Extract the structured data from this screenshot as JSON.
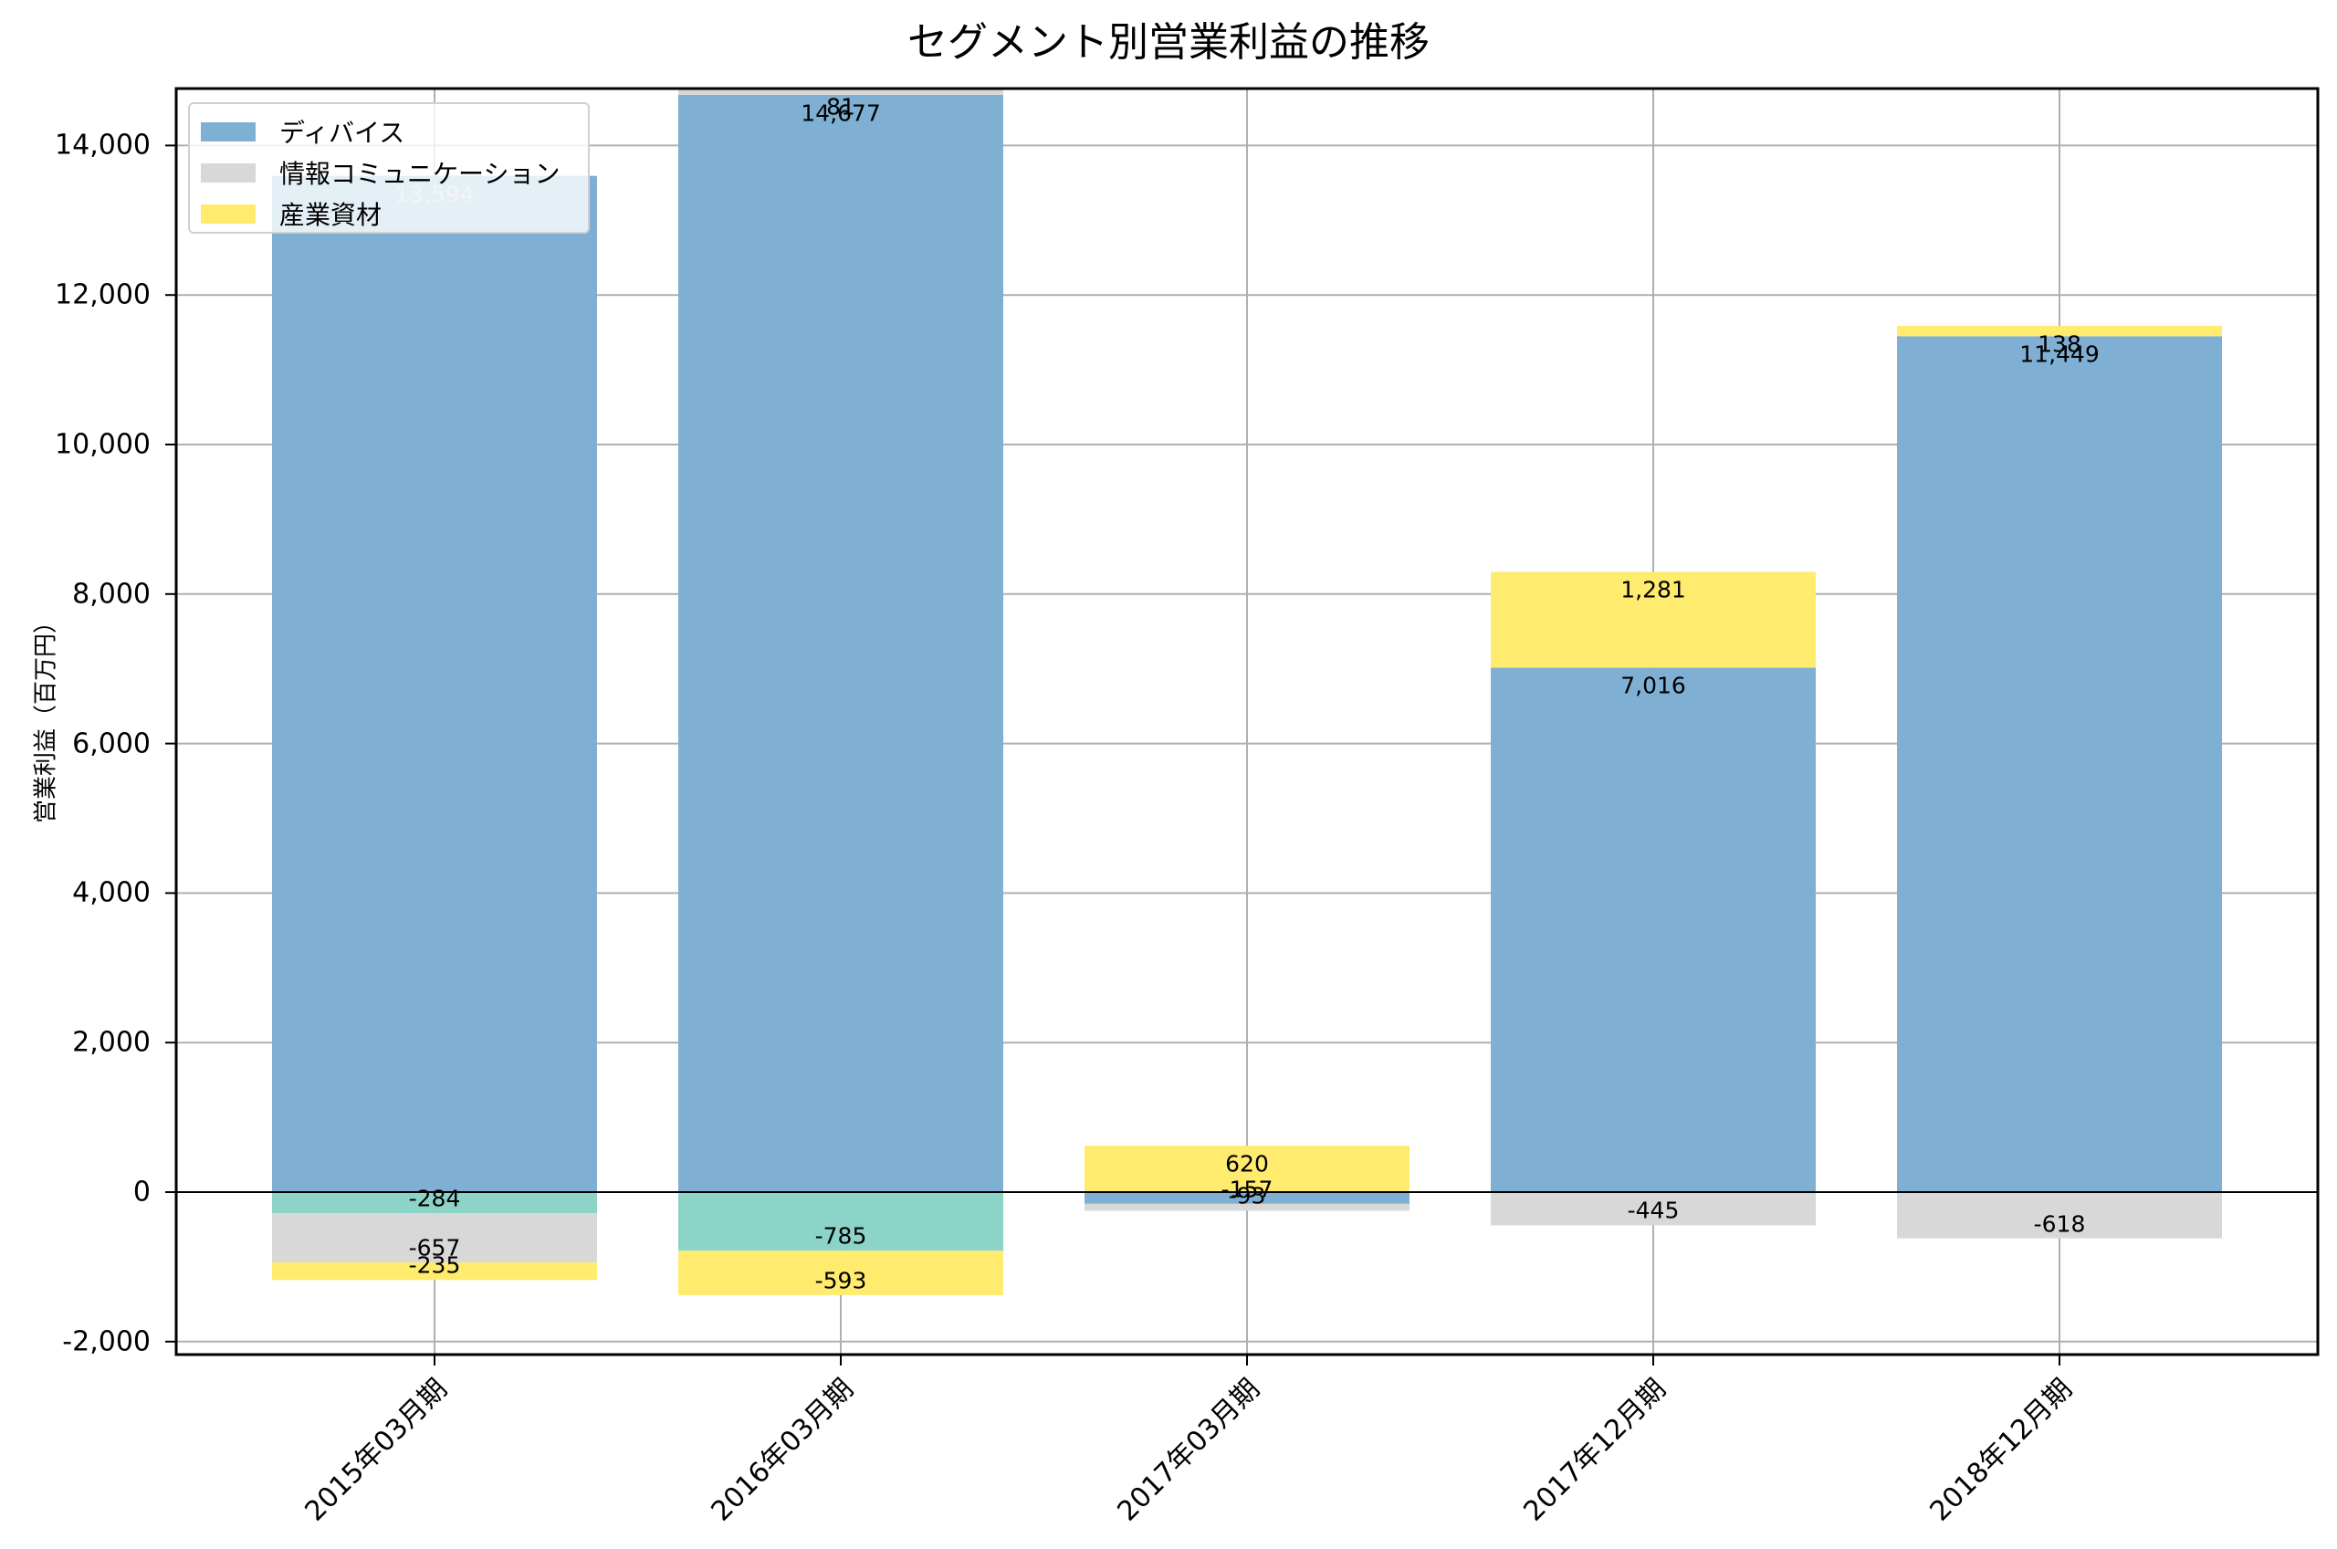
{
  "chart_data": {
    "type": "bar",
    "stacked": true,
    "title": "セグメント別営業利益の推移",
    "xlabel": "",
    "ylabel": "営業利益（百万円）",
    "ylim": [
      -2200,
      14750
    ],
    "yticks": [
      -2000,
      0,
      2000,
      4000,
      6000,
      8000,
      10000,
      12000,
      14000
    ],
    "ytick_labels": [
      "-2,000",
      "0",
      "2,000",
      "4,000",
      "6,000",
      "8,000",
      "10,000",
      "12,000",
      "14,000"
    ],
    "grid": true,
    "legend_position": "upper left",
    "categories": [
      "2015年03月期",
      "2016年03月期",
      "2017年03月期",
      "2017年12月期",
      "2018年12月期"
    ],
    "series": [
      {
        "name": "ディバイス",
        "color": "#7fb0d3",
        "values": [
          13594,
          14677,
          -157,
          7016,
          11449
        ],
        "in_legend": true
      },
      {
        "name": "情報コミュニケーション",
        "color": "#d8d8d8",
        "values": [
          -657,
          81,
          -93,
          -445,
          -618
        ],
        "in_legend": true
      },
      {
        "name": "産業資材",
        "color": "#ffeb6e",
        "values": [
          -235,
          -593,
          620,
          1281,
          138
        ],
        "in_legend": true
      },
      {
        "name": "(凡例なし)",
        "color": "#8dd4c8",
        "values": [
          -284,
          -785,
          0,
          0,
          0
        ],
        "in_legend": false
      }
    ],
    "data_labels": [
      [
        "13,594",
        "-284",
        "-657",
        "-235"
      ],
      [
        "14,677",
        "81",
        "-785",
        "-593"
      ],
      [
        "-157",
        "-93",
        "620"
      ],
      [
        "7,016",
        "-445",
        "1,281"
      ],
      [
        "11,449",
        "-618",
        "138"
      ]
    ]
  },
  "legend": [
    {
      "label": "ディバイス",
      "color": "#7fb0d3"
    },
    {
      "label": "情報コミュニケーション",
      "color": "#d8d8d8"
    },
    {
      "label": "産業資材",
      "color": "#ffeb6e"
    }
  ]
}
